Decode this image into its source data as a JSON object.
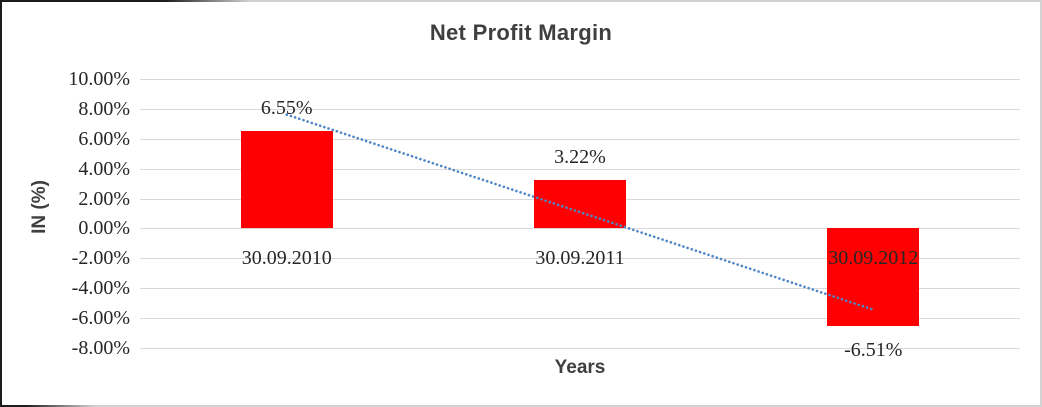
{
  "frame": {
    "background": "#ffffff",
    "border_dark_color": "#1c1c1c",
    "border_light_color": "#d2d2d2"
  },
  "chart_data": {
    "type": "bar",
    "title": "Net Profit Margin",
    "xlabel": "Years",
    "ylabel": "IN (%)",
    "categories": [
      "30.09.2010",
      "30.09.2011",
      "30.09.2012"
    ],
    "values": [
      6.55,
      3.22,
      -6.51
    ],
    "value_labels": [
      "6.55%",
      "3.22%",
      "-6.51%"
    ],
    "ylim": [
      -8,
      10
    ],
    "ytick_values": [
      10,
      8,
      6,
      4,
      2,
      0,
      -2,
      -4,
      -6,
      -8
    ],
    "ytick_labels": [
      "10.00%",
      "8.00%",
      "6.00%",
      "4.00%",
      "2.00%",
      "0.00%",
      "-2.00%",
      "-4.00%",
      "-6.00%",
      "-8.00%"
    ],
    "grid": true,
    "gridline_color": "#d9d9d9",
    "bar_color": "#ff0000",
    "text_color": "#262626",
    "heading_color": "#3f3f3f",
    "legend": "none",
    "trendline": {
      "type": "linear",
      "style": "dotted",
      "color": "#4f86c6",
      "start_value": 7.62,
      "end_value": -5.44
    }
  }
}
